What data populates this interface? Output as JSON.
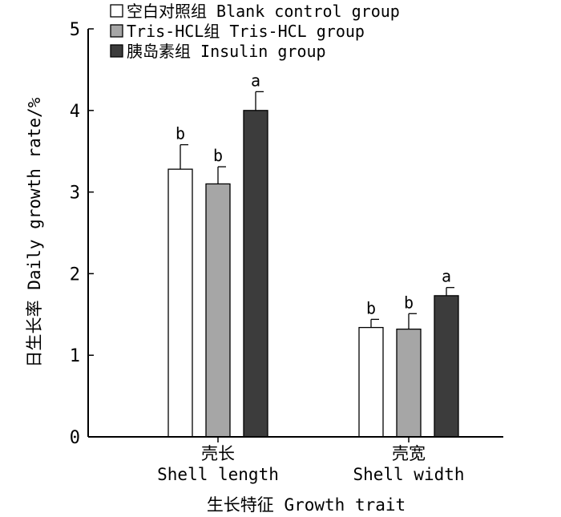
{
  "chart_data": {
    "type": "bar",
    "xlabel": "生长特征 Growth trait",
    "ylabel": "日生长率 Daily growth rate/%",
    "ylim": [
      0,
      5
    ],
    "yticks": [
      0,
      1,
      2,
      3,
      4,
      5
    ],
    "categories": [
      {
        "zh": "壳长",
        "en": "Shell length"
      },
      {
        "zh": "壳宽",
        "en": "Shell width"
      }
    ],
    "series": [
      {
        "name": "空白对照组 Blank control group",
        "color": "#ffffff",
        "values": [
          3.28,
          1.34
        ],
        "errors": [
          0.3,
          0.1
        ],
        "labels": [
          "b",
          "b"
        ]
      },
      {
        "name": "Tris-HCL组 Tris-HCL group",
        "color": "#a6a6a6",
        "values": [
          3.1,
          1.32
        ],
        "errors": [
          0.21,
          0.19
        ],
        "labels": [
          "b",
          "b"
        ]
      },
      {
        "name": "胰岛素组 Insulin group",
        "color": "#3c3c3c",
        "values": [
          4.0,
          1.73
        ],
        "errors": [
          0.23,
          0.1
        ],
        "labels": [
          "a",
          "a"
        ]
      }
    ],
    "legend_position": "top-left"
  }
}
